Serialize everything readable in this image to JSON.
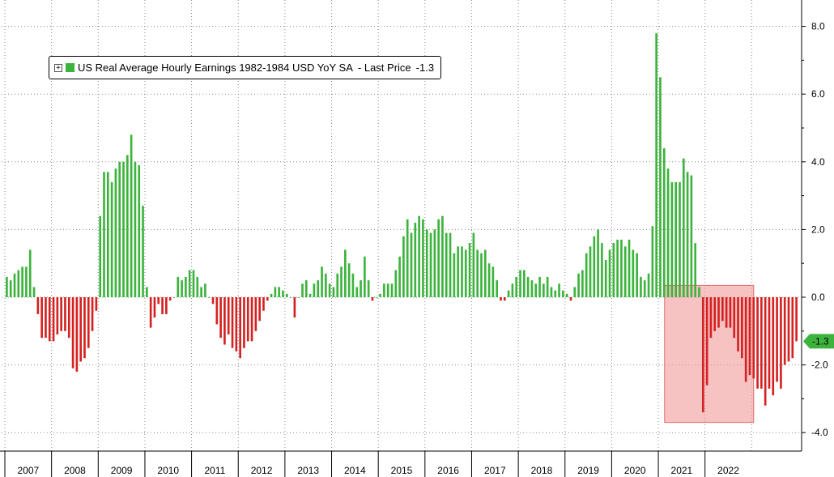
{
  "chart_data": {
    "type": "bar",
    "title": "",
    "xlabel": "",
    "ylabel": "",
    "ylim": [
      -4.2,
      8.8
    ],
    "y_ticks": [
      -4,
      -2,
      0,
      2,
      4,
      6,
      8
    ],
    "y_tick_labels": [
      "-4.0",
      "-2.0",
      "0.0",
      "2.0",
      "4.0",
      "6.0",
      "8.0"
    ],
    "x_axis_side": "bottom",
    "y_axis_side": "right",
    "grid": true,
    "legend_position": "top-left",
    "series": [
      {
        "name": "US Real Average Hourly Earnings 1982-1984 USD YoY SA",
        "start": "2007-01",
        "frequency": "monthly",
        "values": [
          0.6,
          0.5,
          0.7,
          0.8,
          0.9,
          0.9,
          1.4,
          0.3,
          -0.5,
          -1.2,
          -1.2,
          -1.3,
          -1.3,
          -1.1,
          -1.0,
          -1.0,
          -1.2,
          -2.1,
          -2.2,
          -1.9,
          -1.8,
          -1.5,
          -1.0,
          -0.4,
          2.4,
          3.7,
          3.7,
          3.4,
          3.8,
          4.0,
          4.0,
          4.2,
          4.8,
          4.0,
          3.9,
          2.7,
          0.3,
          -0.9,
          -0.6,
          -0.2,
          -0.5,
          -0.5,
          -0.1,
          0.0,
          0.6,
          0.5,
          0.6,
          0.8,
          0.8,
          0.6,
          0.3,
          0.4,
          0.0,
          -0.2,
          -0.8,
          -1.2,
          -1.4,
          -1.1,
          -1.5,
          -1.6,
          -1.8,
          -1.5,
          -1.3,
          -1.3,
          -1.0,
          -0.7,
          -0.4,
          -0.1,
          0.1,
          0.3,
          0.3,
          0.2,
          0.1,
          0.0,
          -0.6,
          0.0,
          0.4,
          0.5,
          0.1,
          0.4,
          0.5,
          0.9,
          0.7,
          0.4,
          0.3,
          0.7,
          0.9,
          1.4,
          1.0,
          0.7,
          0.3,
          0.5,
          1.2,
          0.5,
          -0.1,
          0.0,
          0.1,
          0.4,
          0.4,
          0.4,
          0.8,
          1.2,
          1.8,
          2.3,
          1.9,
          2.2,
          2.4,
          2.3,
          2.0,
          1.9,
          2.0,
          2.3,
          2.4,
          1.9,
          1.9,
          1.3,
          1.5,
          1.5,
          1.4,
          1.6,
          1.9,
          1.4,
          1.3,
          1.4,
          1.0,
          0.9,
          0.5,
          -0.1,
          -0.1,
          0.2,
          0.4,
          0.6,
          0.8,
          0.8,
          0.6,
          0.5,
          0.4,
          0.6,
          0.4,
          0.6,
          0.3,
          0.2,
          0.4,
          0.2,
          0.1,
          -0.1,
          0.3,
          0.7,
          0.8,
          1.3,
          1.5,
          1.8,
          2.0,
          1.6,
          1.1,
          1.4,
          1.6,
          1.7,
          1.7,
          1.5,
          1.7,
          1.4,
          1.3,
          0.6,
          0.5,
          0.7,
          2.1,
          7.8,
          6.5,
          4.4,
          3.8,
          3.4,
          3.4,
          3.4,
          4.1,
          3.7,
          3.6,
          1.6,
          0.3,
          -3.4,
          -2.6,
          -1.2,
          -1.0,
          -0.9,
          -0.7,
          -0.9,
          -0.9,
          -1.2,
          -1.6,
          -1.8,
          -2.5,
          -2.3,
          -2.4,
          -2.7,
          -2.7,
          -3.2,
          -2.7,
          -2.9,
          -2.5,
          -2.7,
          -2.0,
          -1.9,
          -1.8,
          -1.3
        ]
      }
    ],
    "years": [
      "2007",
      "2008",
      "2009",
      "2010",
      "2011",
      "2012",
      "2013",
      "2014",
      "2015",
      "2016",
      "2017",
      "2018",
      "2019",
      "2020",
      "2021",
      "2022"
    ],
    "last_price": -1.3,
    "last_price_label": "-1.3",
    "legend_prefix_icon": "expand-plus-icon",
    "legend_suffix": "- Last Price",
    "highlight_region": {
      "start": "2021-03",
      "end": "2022-12",
      "ymin": -3.7,
      "ymax": 0.35
    },
    "colors": {
      "positive": "#3cb33c",
      "negative": "#d42121",
      "highlight": "#f29a9a",
      "grid": "#888888",
      "last_price_tag": "#3cb33c"
    }
  }
}
